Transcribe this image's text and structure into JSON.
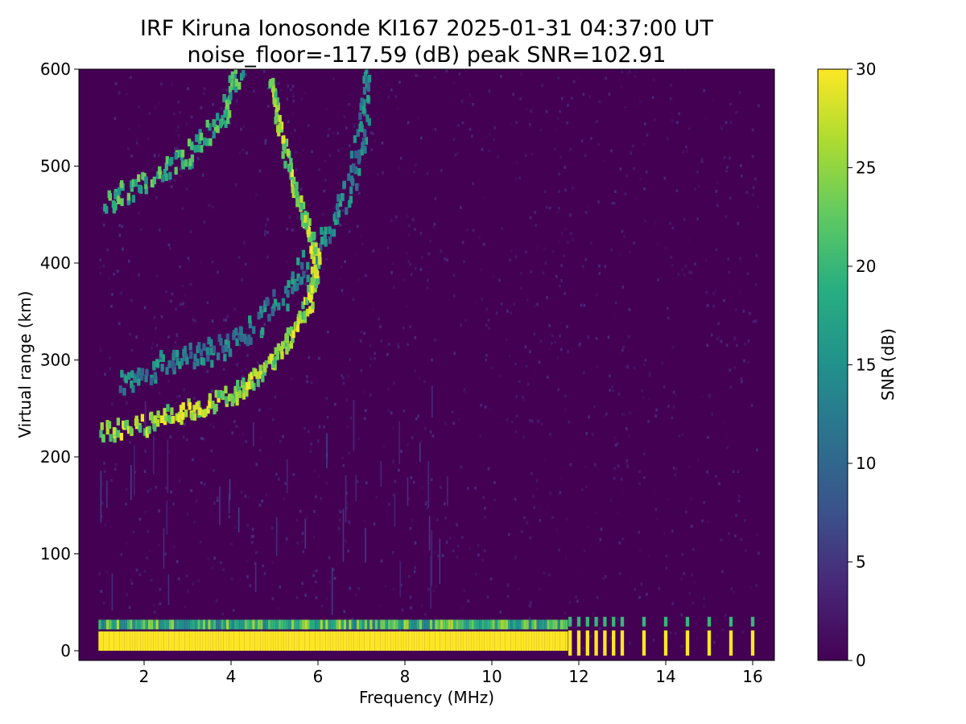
{
  "chart_data": {
    "type": "heatmap",
    "title": "IRF Kiruna Ionosonde KI167 2025-01-31 04:37:00  UT",
    "subtitle": "noise_floor=-117.59 (dB) peak SNR=102.91",
    "xlabel": "Frequency (MHz)",
    "ylabel": "Virtual range (km)",
    "xlim": [
      0.5,
      16.5
    ],
    "ylim": [
      -10,
      600
    ],
    "xticks": [
      "2",
      "4",
      "6",
      "8",
      "10",
      "12",
      "14",
      "16"
    ],
    "yticks": [
      "0",
      "100",
      "200",
      "300",
      "400",
      "500",
      "600"
    ],
    "colorbar": {
      "label": "SNR (dB)",
      "range": [
        0,
        30
      ],
      "ticks": [
        "0",
        "5",
        "10",
        "15",
        "20",
        "25",
        "30"
      ],
      "colormap": "viridis"
    },
    "grid": false,
    "traces": [
      {
        "name": "ground clutter",
        "x": [
          0.95,
          16.1
        ],
        "range_km": [
          -5,
          25
        ],
        "snr_db": 30
      },
      {
        "name": "F-layer ordinary trace",
        "points": [
          [
            1.0,
            225
          ],
          [
            2.0,
            232
          ],
          [
            3.0,
            248
          ],
          [
            4.0,
            262
          ],
          [
            4.7,
            285
          ],
          [
            5.3,
            318
          ],
          [
            5.8,
            358
          ],
          [
            6.0,
            400
          ],
          [
            5.7,
            450
          ],
          [
            5.2,
            520
          ],
          [
            4.9,
            600
          ]
        ],
        "snr_db": 30
      },
      {
        "name": "F-layer extraordinary trace",
        "points": [
          [
            1.5,
            275
          ],
          [
            2.5,
            298
          ],
          [
            3.5,
            305
          ],
          [
            4.5,
            330
          ],
          [
            5.5,
            380
          ],
          [
            6.5,
            450
          ],
          [
            7.0,
            520
          ],
          [
            7.2,
            600
          ]
        ],
        "snr_db": 18
      },
      {
        "name": "multi-hop trace",
        "points": [
          [
            1.1,
            460
          ],
          [
            2.0,
            482
          ],
          [
            3.0,
            510
          ],
          [
            3.8,
            548
          ],
          [
            4.2,
            600
          ]
        ],
        "snr_db": 24
      }
    ]
  }
}
